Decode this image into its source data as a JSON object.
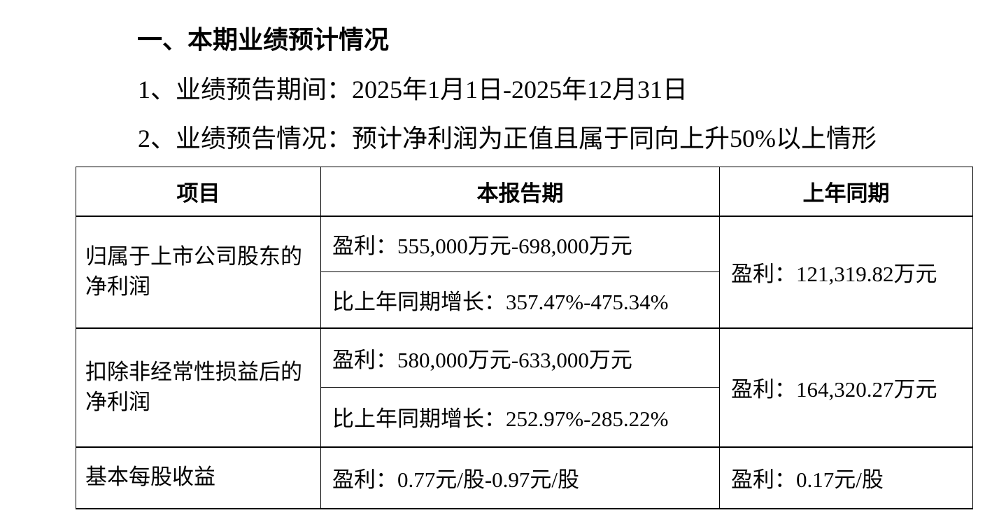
{
  "document": {
    "heading": "一、本期业绩预计情况",
    "paragraph_1": "1、业绩预告期间：2025年1月1日-2025年12月31日",
    "paragraph_2": "2、业绩预告情况：预计净利润为正值且属于同向上升50%以上情形"
  },
  "table": {
    "headers": [
      "项目",
      "本报告期",
      "上年同期"
    ],
    "rows": [
      {
        "item": "归属于上市公司股东的净利润",
        "current_period_profit": "盈利：555,000万元-698,000万元",
        "current_period_growth": "比上年同期增长：357.47%-475.34%",
        "prior_period": "盈利：121,319.82万元"
      },
      {
        "item": "扣除非经常性损益后的净利润",
        "current_period_profit": "盈利：580,000万元-633,000万元",
        "current_period_growth": "比上年同期增长：252.97%-285.22%",
        "prior_period": "盈利：164,320.27万元"
      },
      {
        "item": "基本每股收益",
        "current_period_profit": "盈利：0.77元/股-0.97元/股",
        "prior_period": "盈利：0.17元/股"
      }
    ]
  }
}
